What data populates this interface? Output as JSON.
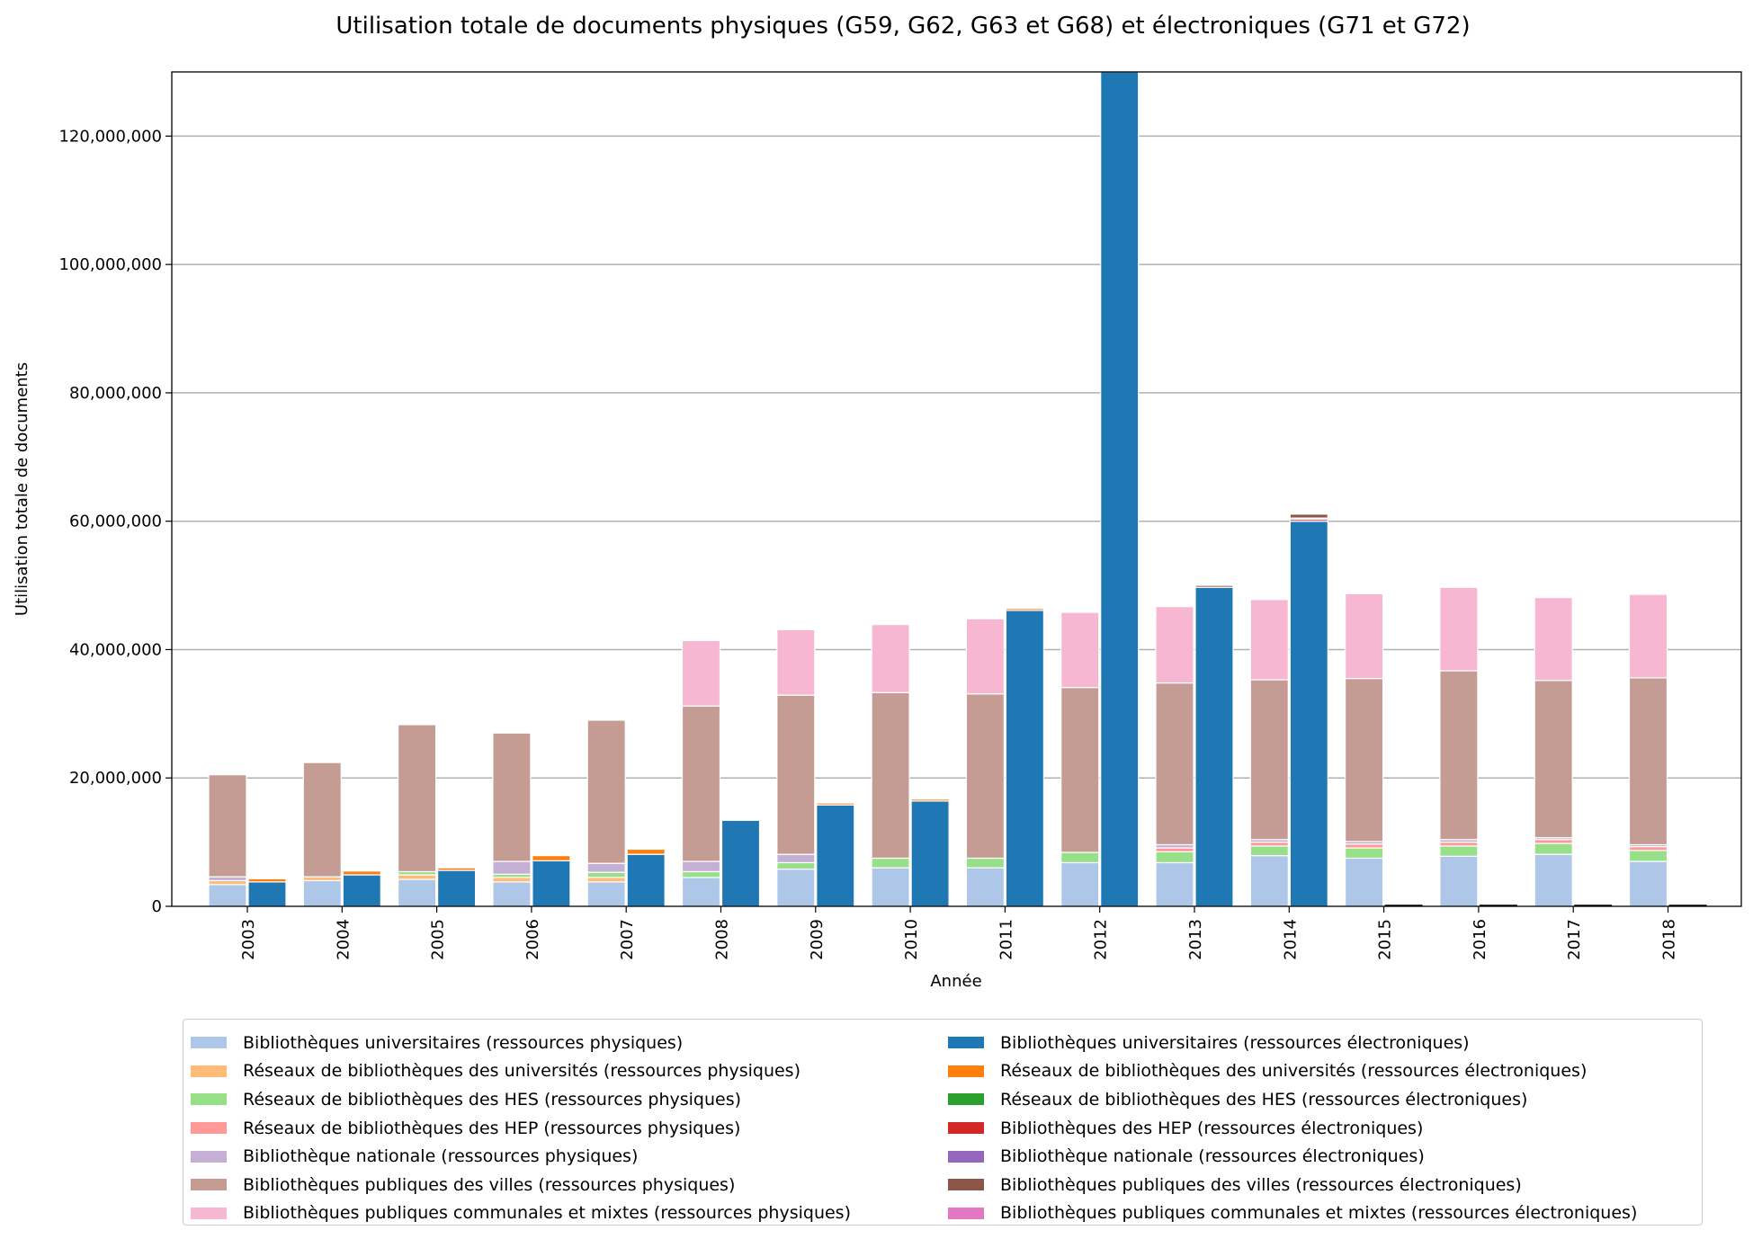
{
  "chart_data": {
    "type": "bar",
    "title": "Utilisation totale de documents physiques (G59, G62, G63 et G68) et électroniques (G71 et G72)",
    "xlabel": "Année",
    "ylabel": "Utilisation totale de documents",
    "ylim": [
      0,
      130000000
    ],
    "yticks": [
      0,
      20000000,
      40000000,
      60000000,
      80000000,
      100000000,
      120000000
    ],
    "ytick_labels": [
      "0",
      "20,000,000",
      "40,000,000",
      "60,000,000",
      "80,000,000",
      "100,000,000",
      "120,000,000"
    ],
    "grid": "horizontal",
    "legend_position": "bottom, two columns",
    "categories": [
      "2003",
      "2004",
      "2005",
      "2006",
      "2007",
      "2008",
      "2009",
      "2010",
      "2011",
      "2012",
      "2013",
      "2014",
      "2015",
      "2016",
      "2017",
      "2018"
    ],
    "stacks": [
      {
        "name": "physical",
        "series": [
          {
            "name": "Bibliothèques universitaires (ressources physiques)",
            "color": "#aec7e8",
            "values": [
              3400000,
              4000000,
              4200000,
              3800000,
              3800000,
              4500000,
              5800000,
              6000000,
              6000000,
              6800000,
              6800000,
              7900000,
              7500000,
              7800000,
              8100000,
              7000000
            ]
          },
          {
            "name": "Réseaux de bibliothèques des universités (ressources physiques)",
            "color": "#ffbb78",
            "values": [
              600000,
              600000,
              700000,
              700000,
              700000,
              0,
              0,
              0,
              0,
              0,
              0,
              0,
              0,
              0,
              0,
              0
            ]
          },
          {
            "name": "Réseaux de bibliothèques des HES (ressources physiques)",
            "color": "#98df8a",
            "values": [
              0,
              0,
              500000,
              500000,
              800000,
              900000,
              1000000,
              1500000,
              1500000,
              1600000,
              1700000,
              1500000,
              1600000,
              1600000,
              1700000,
              1700000
            ]
          },
          {
            "name": "Réseaux de bibliothèques des HEP (ressources physiques)",
            "color": "#ff9896",
            "values": [
              0,
              0,
              0,
              0,
              0,
              0,
              0,
              0,
              0,
              0,
              600000,
              600000,
              600000,
              600000,
              600000,
              600000
            ]
          },
          {
            "name": "Bibliothèque nationale (ressources physiques)",
            "color": "#c5b0d5",
            "values": [
              600000,
              0,
              0,
              2000000,
              1400000,
              1600000,
              1300000,
              0,
              0,
              0,
              500000,
              400000,
              400000,
              400000,
              300000,
              300000
            ]
          },
          {
            "name": "Bibliothèques publiques des villes (ressources physiques)",
            "color": "#c49c94",
            "values": [
              15900000,
              17800000,
              22900000,
              20000000,
              22300000,
              24200000,
              24800000,
              25800000,
              25600000,
              25700000,
              25200000,
              24900000,
              25400000,
              26300000,
              24500000,
              26000000
            ]
          },
          {
            "name": "Bibliothèques publiques communales et mixtes (ressources physiques)",
            "color": "#f7b6d2",
            "values": [
              0,
              0,
              0,
              0,
              0,
              10200000,
              10200000,
              10600000,
              11700000,
              11700000,
              11900000,
              12500000,
              13200000,
              13000000,
              12900000,
              13000000
            ]
          }
        ]
      },
      {
        "name": "electronic",
        "series": [
          {
            "name": "Bibliothèques universitaires (ressources électroniques)",
            "color": "#1f77b4",
            "values": [
              3800000,
              4900000,
              5600000,
              7100000,
              8100000,
              13400000,
              15800000,
              16400000,
              46100000,
              130000000,
              49700000,
              60000000,
              0,
              0,
              0,
              0
            ]
          },
          {
            "name": "Réseaux de bibliothèques des universités (ressources électroniques)",
            "color": "#ff7f0e",
            "values": [
              500000,
              600000,
              400000,
              800000,
              800000,
              0,
              300000,
              300000,
              300000,
              0,
              0,
              0,
              0,
              0,
              0,
              0
            ]
          },
          {
            "name": "Réseaux de bibliothèques des HES (ressources électroniques)",
            "color": "#2ca02c",
            "values": [
              0,
              0,
              0,
              0,
              0,
              0,
              0,
              0,
              0,
              0,
              0,
              0,
              0,
              0,
              0,
              0
            ]
          },
          {
            "name": "Bibliothèques des HEP (ressources électroniques)",
            "color": "#d62728",
            "values": [
              0,
              0,
              0,
              0,
              0,
              0,
              0,
              0,
              0,
              0,
              0,
              300000,
              0,
              0,
              0,
              0
            ]
          },
          {
            "name": "Bibliothèque nationale (ressources électroniques)",
            "color": "#9467bd",
            "values": [
              0,
              0,
              0,
              0,
              0,
              0,
              0,
              0,
              0,
              0,
              0,
              200000,
              0,
              0,
              0,
              0
            ]
          },
          {
            "name": "Bibliothèques publiques des villes (ressources électroniques)",
            "color": "#8c564b",
            "values": [
              0,
              0,
              0,
              0,
              0,
              0,
              0,
              0,
              0,
              0,
              300000,
              600000,
              0,
              0,
              0,
              0
            ]
          },
          {
            "name": "Bibliothèques publiques communales et mixtes (ressources électroniques)",
            "color": "#e377c2",
            "values": [
              0,
              0,
              0,
              0,
              0,
              0,
              0,
              0,
              0,
              0,
              0,
              0,
              0,
              0,
              0,
              0
            ]
          }
        ]
      }
    ]
  }
}
